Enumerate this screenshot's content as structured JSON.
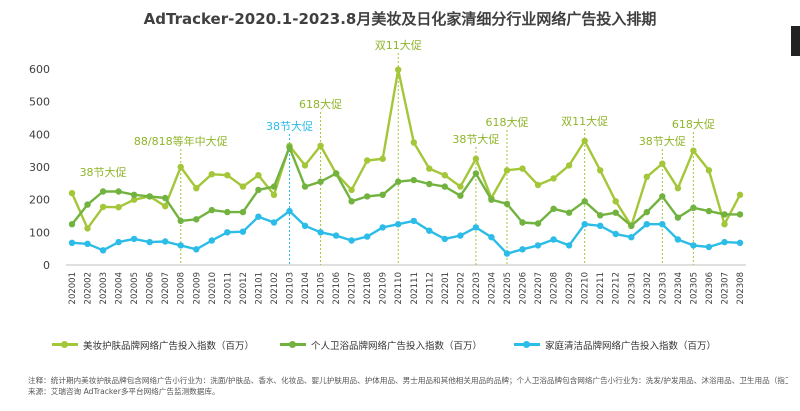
{
  "chart_data": {
    "type": "line",
    "title": "AdTracker-2020.1-2023.8月美妆及日化家清细分行业网络广告投入排期",
    "ylim": [
      0,
      600
    ],
    "yticks": [
      0,
      100,
      200,
      300,
      400,
      500,
      600
    ],
    "grid": false,
    "legend_position": "bottom",
    "categories": [
      "202001",
      "202002",
      "202003",
      "202004",
      "202005",
      "202006",
      "202007",
      "202008",
      "202009",
      "202010",
      "202011",
      "202012",
      "202101",
      "202102",
      "202103",
      "202104",
      "202105",
      "202106",
      "202107",
      "202108",
      "202109",
      "202110",
      "202111",
      "202112",
      "202201",
      "202202",
      "202203",
      "202204",
      "202205",
      "202206",
      "202207",
      "202208",
      "202209",
      "202210",
      "202211",
      "202212",
      "202301",
      "202302",
      "202303",
      "202304",
      "202305",
      "202306",
      "202307",
      "202308"
    ],
    "series": [
      {
        "name": "美妆护肤品牌网络广告投入指数（百万）",
        "color": "#a4c639",
        "values": [
          220,
          112,
          178,
          177,
          200,
          210,
          180,
          300,
          235,
          278,
          275,
          240,
          275,
          215,
          365,
          305,
          365,
          280,
          230,
          320,
          325,
          598,
          375,
          295,
          275,
          240,
          325,
          205,
          290,
          295,
          245,
          265,
          305,
          380,
          290,
          195,
          120,
          270,
          310,
          235,
          350,
          290,
          125,
          215
        ]
      },
      {
        "name": "个人卫浴品牌网络广告投入指数（百万）",
        "color": "#72b340",
        "values": [
          125,
          185,
          225,
          225,
          215,
          210,
          205,
          135,
          140,
          168,
          162,
          162,
          230,
          240,
          360,
          240,
          255,
          280,
          195,
          210,
          215,
          255,
          260,
          248,
          240,
          212,
          280,
          200,
          187,
          130,
          127,
          172,
          160,
          195,
          152,
          160,
          120,
          162,
          210,
          145,
          175,
          165,
          155,
          155
        ]
      },
      {
        "name": "家庭清洁品牌网络广告投入指数（百万）",
        "color": "#2cbce8",
        "values": [
          68,
          65,
          45,
          70,
          80,
          70,
          72,
          60,
          48,
          75,
          100,
          102,
          148,
          130,
          165,
          120,
          100,
          90,
          75,
          87,
          115,
          125,
          135,
          105,
          80,
          90,
          115,
          85,
          35,
          48,
          60,
          78,
          60,
          125,
          120,
          95,
          85,
          125,
          125,
          78,
          60,
          55,
          70,
          68
        ]
      }
    ],
    "annotations": [
      {
        "text": "38节大促",
        "x": "202003",
        "guide": false
      },
      {
        "text": "88/818等年中大促",
        "x": "202008",
        "guide": true
      },
      {
        "text": "38节大促",
        "x": "202103",
        "guide": true
      },
      {
        "text": "618大促",
        "x": "202105",
        "guide": true
      },
      {
        "text": "双11大促",
        "x": "202110",
        "guide": true
      },
      {
        "text": "38节大促",
        "x": "202203",
        "guide": true
      },
      {
        "text": "618大促",
        "x": "202205",
        "guide": true
      },
      {
        "text": "双11大促",
        "x": "202210",
        "guide": true
      },
      {
        "text": "38节大促",
        "x": "202303",
        "guide": true
      },
      {
        "text": "618大促",
        "x": "202305",
        "guide": true
      }
    ]
  },
  "notes": [
    "注释：统计期内美妆护肤品牌包含网络广告小行业为：洗面/护肤品、香水、化妆品、婴儿护肤用品、护体用品、男士用品和其他相关用品的品牌；个人卫浴品牌包含网络广告小行业为：洗发/护发用品、沐浴用品、卫生用品（指卫生巾）、牙膏/牙刷的品牌；家庭清洁品牌包含网络广告小行业为：消毒/卫生用品、洗衣产品、清洁剂/洗洁精、纸巾/卫生纸的品牌。",
    "来源：艾瑞咨询 AdTracker多平台网络广告监测数据库。"
  ]
}
